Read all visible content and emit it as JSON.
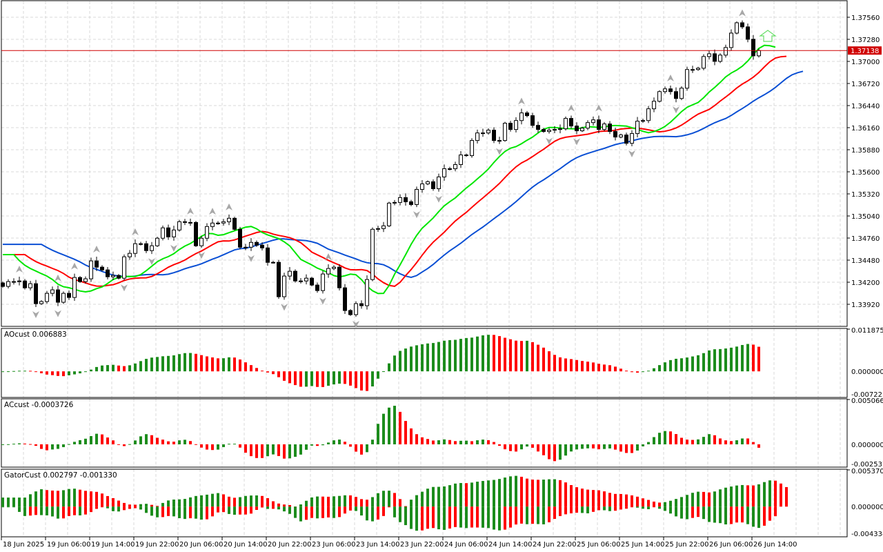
{
  "chart_data": {
    "type": "candlestick",
    "start_open": 1.3419,
    "closes": [
      1.34147,
      1.34208,
      1.34208,
      1.34216,
      1.34129,
      1.34181,
      1.33928,
      1.33955,
      1.34059,
      1.34103,
      1.33946,
      1.34059,
      1.34007,
      1.3426,
      1.34208,
      1.34243,
      1.3447,
      1.34391,
      1.34356,
      1.34269,
      1.34286,
      1.34251,
      1.34522,
      1.34566,
      1.34688,
      1.34688,
      1.34601,
      1.34662,
      1.34758,
      1.34889,
      1.34775,
      1.34862,
      1.34967,
      1.34958,
      1.34958,
      1.34662,
      1.34758,
      1.34906,
      1.3495,
      1.3495,
      1.34967,
      1.35011,
      1.34871,
      1.34644,
      1.34644,
      1.34705,
      1.3467,
      1.34635,
      1.34452,
      1.34452,
      1.34016,
      1.34278,
      1.34339,
      1.34216,
      1.34216,
      1.34251,
      1.34164,
      1.34094,
      1.34304,
      1.34374,
      1.34391,
      1.34129,
      1.33841,
      1.33789,
      1.33928,
      1.33902,
      1.34234,
      1.34871,
      1.3488,
      1.34915,
      1.35203,
      1.35212,
      1.35273,
      1.3522,
      1.35185,
      1.35377,
      1.35447,
      1.35474,
      1.35386,
      1.35535,
      1.35639,
      1.35639,
      1.35692,
      1.35814,
      1.35805,
      1.35997,
      1.36093,
      1.36093,
      1.36128,
      1.35997,
      1.35997,
      1.36216,
      1.36137,
      1.3625,
      1.36347,
      1.36312,
      1.36189,
      1.36137,
      1.36111,
      1.36128,
      1.36137,
      1.36146,
      1.36277,
      1.36181,
      1.3612,
      1.36154,
      1.36224,
      1.36259,
      1.36137,
      1.36207,
      1.36111,
      1.36041,
      1.36067,
      1.35962,
      1.36085,
      1.36242,
      1.3625,
      1.36399,
      1.36495,
      1.36617,
      1.36652,
      1.36617,
      1.3653,
      1.36661,
      1.36897,
      1.36897,
      1.36914,
      1.37062,
      1.37097,
      1.37001,
      1.3708,
      1.37176,
      1.37359,
      1.3749,
      1.37438,
      1.37281,
      1.37071,
      1.37138
    ],
    "ylim": [
      1.3364,
      1.3777
    ],
    "price_ticks": [
      "1.37560",
      "1.37280",
      "1.37000",
      "1.36720",
      "1.36440",
      "1.36160",
      "1.35880",
      "1.35600",
      "1.35320",
      "1.35040",
      "1.34760",
      "1.34480",
      "1.34200",
      "1.33920"
    ],
    "current_price": "1.37138",
    "x_tick_labels": [
      "18 Jun 2025",
      "19 Jun 06:00",
      "19 Jun 14:00",
      "19 Jun 22:00",
      "20 Jun 06:00",
      "20 Jun 14:00",
      "20 Jun 22:00",
      "23 Jun 06:00",
      "23 Jun 14:00",
      "23 Jun 22:00",
      "24 Jun 06:00",
      "24 Jun 14:00",
      "24 Jun 22:00",
      "25 Jun 06:00",
      "25 Jun 14:00",
      "25 Jun 22:00",
      "26 Jun 06:00",
      "26 Jun 14:00"
    ],
    "alligator_start": {
      "jaw": 1.3468,
      "teeth": 1.3455,
      "lips": 1.3455
    },
    "colors": {
      "jaw": "#0a4fd4",
      "teeth": "#ff0000",
      "lips": "#00e600",
      "up": "#1c8c1c",
      "down": "#ff0000",
      "price_line": "#d00000",
      "fractal": "#a8a8a8",
      "signal_arrow": "#66dd66"
    },
    "indicators": [
      {
        "title": "AOcust 0.006883",
        "ticks": [
          "0.011875",
          "0.000000",
          "-0.007223"
        ],
        "range": [
          -0.007223,
          0.011875
        ]
      },
      {
        "title": "ACcust -0.0003726",
        "ticks": [
          "0.0050668",
          "0.0000000",
          "-0.0025373"
        ],
        "range": [
          -0.0025373,
          0.0050668
        ]
      },
      {
        "title": "GatorCust 0.002797 -0.001330",
        "ticks": [
          "0.005370",
          "0.000000",
          "-0.004334"
        ],
        "range": [
          -0.004334,
          0.00537
        ]
      }
    ]
  }
}
